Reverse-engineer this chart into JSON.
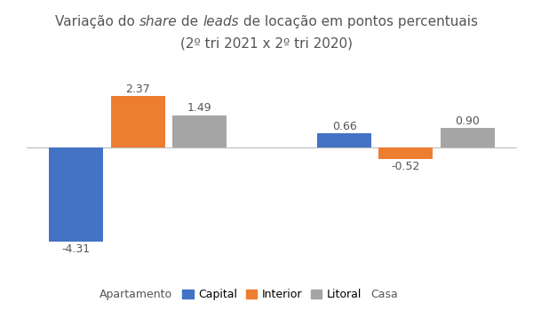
{
  "groups": [
    "Apartamento",
    "Casa"
  ],
  "series": [
    "Capital",
    "Interior",
    "Litoral"
  ],
  "values": {
    "Apartamento": [
      -4.31,
      2.37,
      1.49
    ],
    "Casa": [
      0.66,
      -0.52,
      0.9
    ]
  },
  "colors": [
    "#4472C4",
    "#ED7D31",
    "#A5A5A5"
  ],
  "bar_width": 0.22,
  "group_centers": [
    0.0,
    1.0
  ],
  "offsets": [
    -0.23,
    0.0,
    0.23
  ],
  "ylim": [
    -5.5,
    3.5
  ],
  "background_color": "#FFFFFF",
  "label_fontsize": 9,
  "legend_fontsize": 9,
  "title_fontsize": 11,
  "text_color": "#555555"
}
